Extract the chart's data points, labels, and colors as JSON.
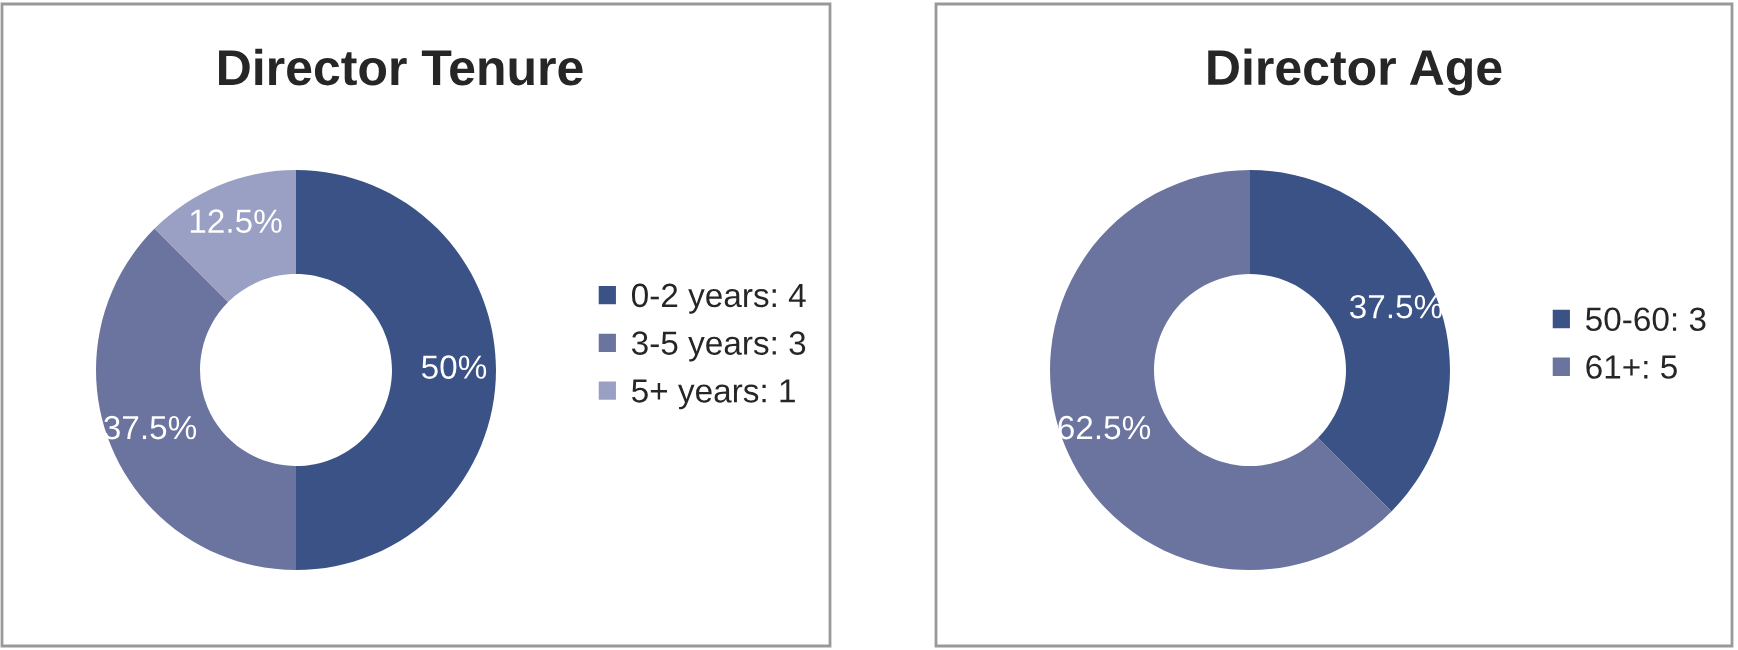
{
  "chart_data": [
    {
      "type": "donut",
      "title": "Director Tenure",
      "categories": [
        "0-2 years: 4",
        "3-5 years: 3",
        "5+ years: 1"
      ],
      "values": [
        50,
        37.5,
        12.5
      ],
      "value_labels": [
        "50%",
        "37.5%",
        "12.5%"
      ],
      "colors": [
        "#3b5287",
        "#6b739f",
        "#9aa0c4"
      ],
      "legend": "right"
    },
    {
      "type": "donut",
      "title": "Director Age",
      "categories": [
        "50-60: 3",
        "61+: 5"
      ],
      "values": [
        37.5,
        62.5
      ],
      "value_labels": [
        "37.5%",
        "62.5%"
      ],
      "colors": [
        "#3b5287",
        "#6b739f"
      ],
      "legend": "right"
    }
  ]
}
